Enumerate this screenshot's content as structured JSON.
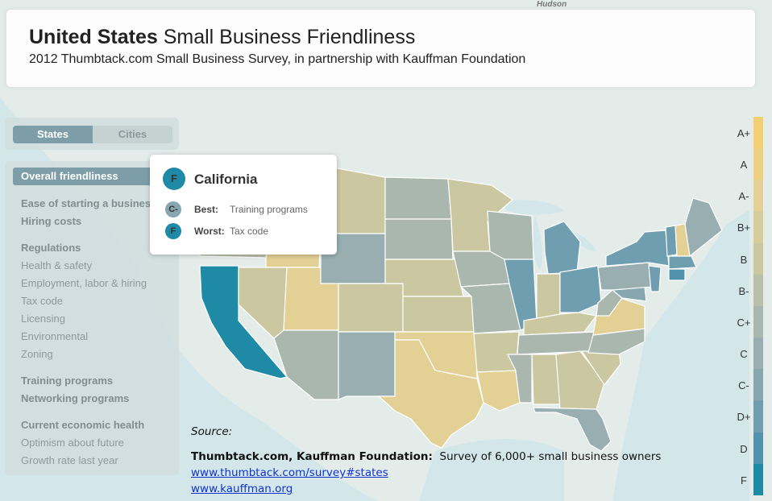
{
  "header": {
    "title_bold": "United States",
    "title_rest": "Small Business Friendliness",
    "subtitle": "2012 Thumbtack.com Small Business Survey, in partnership with Kauffman Foundation"
  },
  "map_label": "Hudson",
  "toggle": {
    "states": "States",
    "cities": "Cities",
    "active": "States"
  },
  "sidebar": {
    "active": "Overall friendliness",
    "items": [
      {
        "label": "Ease of starting a business",
        "bold": true
      },
      {
        "label": "Hiring costs",
        "bold": true
      },
      {
        "label": "Regulations",
        "bold": true
      },
      {
        "label": "Health & safety",
        "bold": false
      },
      {
        "label": "Employment, labor & hiring",
        "bold": false
      },
      {
        "label": "Tax code",
        "bold": false
      },
      {
        "label": "Licensing",
        "bold": false
      },
      {
        "label": "Environmental",
        "bold": false
      },
      {
        "label": "Zoning",
        "bold": false
      },
      {
        "label": "Training programs",
        "bold": true
      },
      {
        "label": "Networking programs",
        "bold": true
      },
      {
        "label": "Current economic health",
        "bold": true
      },
      {
        "label": "Optimism about future",
        "bold": false
      },
      {
        "label": "Growth rate last year",
        "bold": false
      }
    ]
  },
  "popup": {
    "grade": "F",
    "state": "California",
    "best_label": "Best:",
    "best_grade": "C-",
    "best_value": "Training programs",
    "worst_label": "Worst:",
    "worst_grade": "F",
    "worst_value": "Tax code"
  },
  "legend": {
    "grades": [
      "A+",
      "A",
      "A-",
      "B+",
      "B",
      "B-",
      "C+",
      "C",
      "C-",
      "D+",
      "D",
      "F"
    ],
    "colors": [
      "#f3cf72",
      "#efd083",
      "#e3d095",
      "#d6cc9c",
      "#cbc7a0",
      "#b9bfa8",
      "#a9b7ae",
      "#98aeb0",
      "#86a7b0",
      "#6f9eb1",
      "#5193ae",
      "#1f8aa5"
    ]
  },
  "source": {
    "label": "Source:",
    "org": "Thumbtack.com, Kauffman Foundation:",
    "desc": "Survey of 6,000+ small business owners",
    "link1": "www.thumbtack.com/survey#states",
    "link2": "www.kauffman.org"
  },
  "state_grades": {
    "CA": "F",
    "OR": "B-",
    "WA": "B",
    "ID": "A-",
    "NV": "B",
    "UT": "A-",
    "AZ": "C+",
    "NM": "C",
    "MT": "B",
    "WY": "C",
    "CO": "B",
    "ND": "C+",
    "SD": "C+",
    "NE": "B",
    "KS": "B",
    "OK": "A-",
    "TX": "A-",
    "MN": "B",
    "IA": "C+",
    "MO": "C+",
    "AR": "B",
    "LA": "A-",
    "WI": "C+",
    "IL": "D+",
    "MI": "D+",
    "IN": "B",
    "OH": "D+",
    "KY": "B",
    "TN": "C+",
    "MS": "C+",
    "AL": "B",
    "GA": "B",
    "FL": "C",
    "SC": "B",
    "NC": "C+",
    "VA": "A-",
    "WV": "C+",
    "PA": "C",
    "NY": "D+",
    "VT": "D+",
    "NH": "A-",
    "ME": "C",
    "MA": "D+",
    "CT": "D",
    "NJ": "D+",
    "MD": "C-"
  }
}
